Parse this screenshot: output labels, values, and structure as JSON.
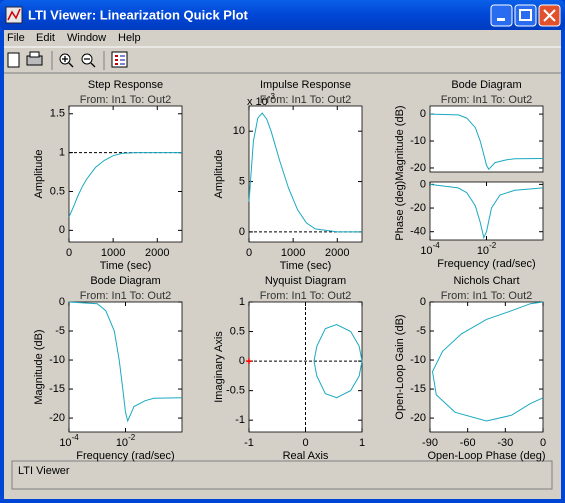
{
  "window": {
    "title": "LTI Viewer: Linearization Quick Plot"
  },
  "menu": [
    "File",
    "Edit",
    "Window",
    "Help"
  ],
  "status": "LTI Viewer",
  "plots": [
    {
      "title": "Step Response",
      "subtitle": "From: In1  To: Out2",
      "xlabel": "Time (sec)",
      "ylabel": [
        "Amplitude"
      ],
      "xlim": [
        0,
        2560
      ],
      "xticks": [
        0,
        1000,
        2000
      ],
      "axes": [
        {
          "ylim": [
            -0.15,
            1.6
          ],
          "yticks": [
            0,
            0.5,
            1,
            1.5
          ],
          "reference": {
            "y": 1
          },
          "line": {
            "x": [
              0,
              100,
              200,
              300,
              400,
              600,
              800,
              1000,
              1200,
              1500,
              2000,
              2560
            ],
            "y": [
              0.17,
              0.3,
              0.44,
              0.56,
              0.66,
              0.81,
              0.9,
              0.96,
              0.99,
              1.0,
              1.0,
              1.0
            ]
          }
        }
      ]
    },
    {
      "title": "Impulse Response",
      "subtitle": "From: In1  To: Out2",
      "xlabel": "Time (sec)",
      "ylabel": [
        "Amplitude"
      ],
      "exponent": {
        "label": "x 10",
        "sup": "-3"
      },
      "xlim": [
        0,
        2560
      ],
      "xticks": [
        0,
        1000,
        2000
      ],
      "axes": [
        {
          "ylim": [
            -1,
            12.5
          ],
          "yticks": [
            0,
            5,
            10
          ],
          "reference": {
            "y": 0
          },
          "line": {
            "x": [
              0,
              50,
              100,
              200,
              300,
              400,
              500,
              700,
              900,
              1100,
              1300,
              1500,
              2000,
              2560
            ],
            "y": [
              3,
              6,
              9,
              11.3,
              11.8,
              11.2,
              10,
              7,
              4.3,
              2.2,
              0.9,
              0.3,
              0,
              0
            ]
          }
        }
      ]
    },
    {
      "title": "Bode Diagram",
      "subtitle": "From: In1  To: Out2",
      "xlabel": "Frequency  (rad/sec)",
      "ylabel": [
        "Phase (deg)",
        "Magnitude (dB)"
      ],
      "xscale": "log",
      "xlim": [
        0.0001,
        1
      ],
      "xticks": [
        {
          "value": 0.0001,
          "label": "10",
          "sup": "-4"
        },
        {
          "value": 0.01,
          "label": "10",
          "sup": "-2"
        }
      ],
      "axes": [
        {
          "ylim": [
            -21.5,
            3
          ],
          "yticks": [
            -20,
            -10,
            0
          ],
          "line": {
            "x": [
              0.0001,
              0.001,
              0.002,
              0.004,
              0.006,
              0.008,
              0.01,
              0.012,
              0.02,
              0.05,
              0.1,
              1
            ],
            "y": [
              0,
              -0.3,
              -1.5,
              -5,
              -10,
              -15,
              -19,
              -20.5,
              -18,
              -17,
              -16.6,
              -16.5
            ]
          }
        },
        {
          "ylim": [
            -47,
            2
          ],
          "yticks": [
            -40,
            -20,
            0
          ],
          "line": {
            "x": [
              0.0001,
              0.001,
              0.002,
              0.004,
              0.006,
              0.008,
              0.01,
              0.015,
              0.03,
              0.1,
              1
            ],
            "y": [
              0,
              -3,
              -7,
              -18,
              -32,
              -45,
              -40,
              -20,
              -9,
              -5,
              -3
            ]
          }
        }
      ]
    },
    {
      "title": "Bode Diagram",
      "subtitle": "From: In1  To: Out2",
      "xlabel": "Frequency  (rad/sec)",
      "ylabel": [
        "Magnitude (dB)"
      ],
      "xscale": "log",
      "xlim": [
        0.0001,
        1
      ],
      "xticks": [
        {
          "value": 0.0001,
          "label": "10",
          "sup": "-4"
        },
        {
          "value": 0.01,
          "label": "10",
          "sup": "-2"
        }
      ],
      "axes": [
        {
          "ylim": [
            -22.4,
            0
          ],
          "yticks": [
            -20,
            -15,
            -10,
            -5,
            0
          ],
          "line": {
            "x": [
              0.0001,
              0.001,
              0.002,
              0.004,
              0.006,
              0.008,
              0.01,
              0.012,
              0.02,
              0.05,
              0.1,
              1
            ],
            "y": [
              0,
              -0.3,
              -1.5,
              -5,
              -10,
              -15,
              -19,
              -20.5,
              -18,
              -17,
              -16.6,
              -16.5
            ]
          }
        }
      ]
    },
    {
      "title": "Nyquist Diagram",
      "subtitle": "From: In1  To: Out2",
      "xlabel": "Real Axis",
      "ylabel": [
        "Imaginary Axis"
      ],
      "xlim": [
        -1,
        1
      ],
      "xticks": [
        -1,
        0,
        1
      ],
      "axes": [
        {
          "ylim": [
            -1.2,
            1
          ],
          "yticks": [
            -1,
            -0.5,
            0,
            0.5,
            1
          ],
          "reference": {
            "x": 0,
            "y": 0
          },
          "critical_point": [
            -1,
            0
          ],
          "line": {
            "x": [
              0.15,
              0.2,
              0.35,
              0.55,
              0.8,
              0.95,
              1,
              0.95,
              0.8,
              0.55,
              0.35,
              0.2,
              0.15
            ],
            "y": [
              0,
              0.25,
              0.55,
              0.62,
              0.5,
              0.25,
              0,
              -0.25,
              -0.5,
              -0.62,
              -0.55,
              -0.25,
              0
            ]
          }
        }
      ]
    },
    {
      "title": "Nichols Chart",
      "subtitle": "From: In1  To: Out2",
      "xlabel": "Open-Loop Phase (deg)",
      "ylabel": [
        "Open-Loop Gain (dB)"
      ],
      "xlim": [
        -90,
        0
      ],
      "xticks": [
        -90,
        -60,
        -30,
        0
      ],
      "axes": [
        {
          "ylim": [
            -22.4,
            0
          ],
          "yticks": [
            -20,
            -15,
            -10,
            -5,
            0
          ],
          "line": {
            "x": [
              0,
              -10,
              -25,
              -45,
              -65,
              -80,
              -88,
              -85,
              -70,
              -45,
              -25,
              -10,
              0
            ],
            "y": [
              0,
              -0.3,
              -1.5,
              -3,
              -5.5,
              -8.5,
              -12,
              -16,
              -19,
              -20.5,
              -19.5,
              -17.5,
              -16.5
            ]
          }
        }
      ]
    }
  ]
}
